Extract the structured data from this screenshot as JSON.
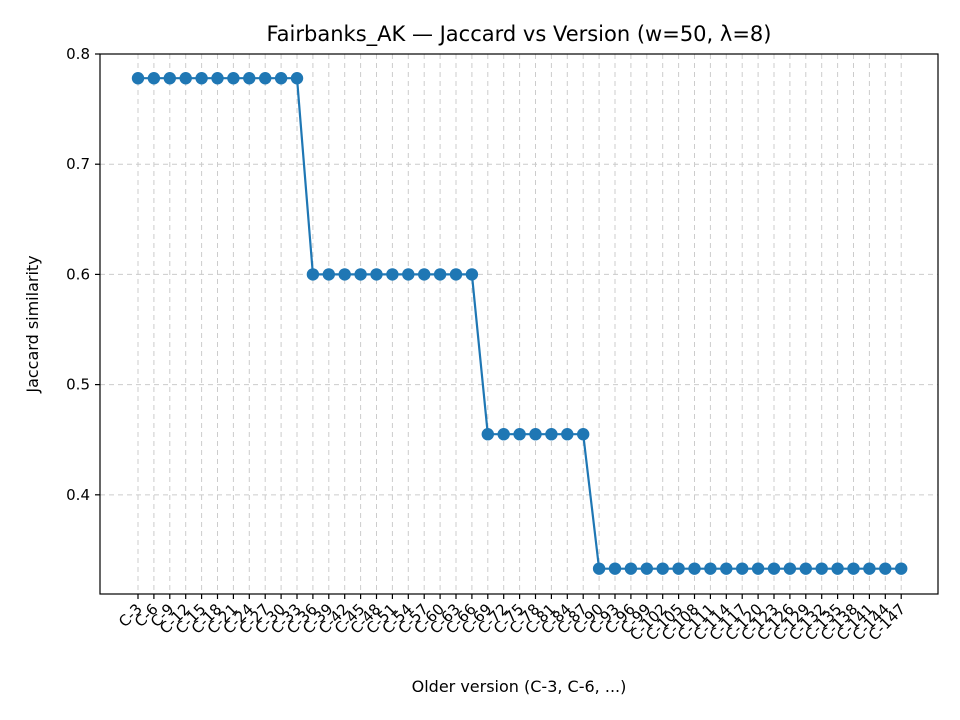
{
  "chart_data": {
    "type": "line",
    "title": "Fairbanks_AK — Jaccard vs Version (w=50, λ=8)",
    "xlabel": "Older version (C-3, C-6, ...)",
    "ylabel": "Jaccard similarity",
    "ylim": [
      0.31,
      0.8
    ],
    "yticks": [
      "0.4",
      "0.5",
      "0.6",
      "0.7",
      "0.8"
    ],
    "grid": true,
    "color": "#1f77b4",
    "categories": [
      "C-3",
      "C-6",
      "C-9",
      "C-12",
      "C-15",
      "C-18",
      "C-21",
      "C-24",
      "C-27",
      "C-30",
      "C-33",
      "C-36",
      "C-39",
      "C-42",
      "C-45",
      "C-48",
      "C-51",
      "C-54",
      "C-57",
      "C-60",
      "C-63",
      "C-66",
      "C-69",
      "C-72",
      "C-75",
      "C-78",
      "C-81",
      "C-84",
      "C-87",
      "C-90",
      "C-93",
      "C-96",
      "C-99",
      "C-102",
      "C-105",
      "C-108",
      "C-111",
      "C-114",
      "C-117",
      "C-120",
      "C-123",
      "C-126",
      "C-129",
      "C-132",
      "C-135",
      "C-138",
      "C-141",
      "C-144",
      "C-147"
    ],
    "values": [
      0.778,
      0.778,
      0.778,
      0.778,
      0.778,
      0.778,
      0.778,
      0.778,
      0.778,
      0.778,
      0.778,
      0.6,
      0.6,
      0.6,
      0.6,
      0.6,
      0.6,
      0.6,
      0.6,
      0.6,
      0.6,
      0.6,
      0.455,
      0.455,
      0.455,
      0.455,
      0.455,
      0.455,
      0.455,
      0.333,
      0.333,
      0.333,
      0.333,
      0.333,
      0.333,
      0.333,
      0.333,
      0.333,
      0.333,
      0.333,
      0.333,
      0.333,
      0.333,
      0.333,
      0.333,
      0.333,
      0.333,
      0.333,
      0.333
    ]
  }
}
